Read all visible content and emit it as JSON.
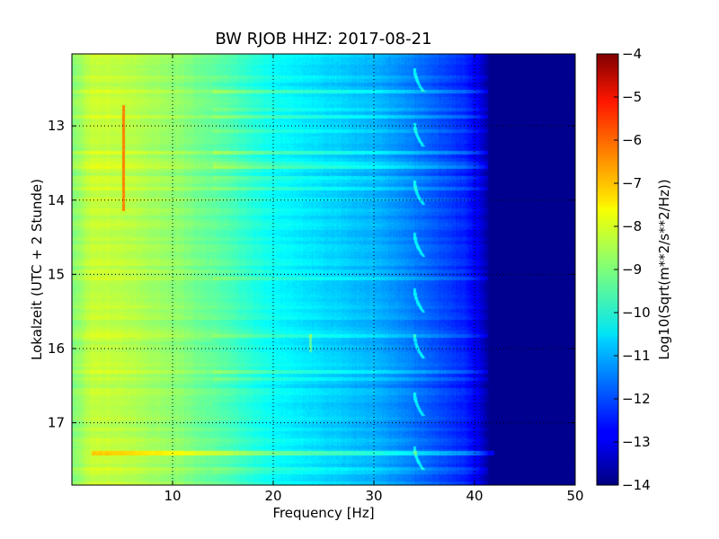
{
  "chart_data": {
    "type": "heatmap",
    "title": "BW RJOB HHZ: 2017-08-21",
    "xlabel": "Frequency [Hz]",
    "ylabel": "Lokalzeit (UTC + 2 Stunde)",
    "xlim": [
      0,
      50
    ],
    "ylim": [
      12.03,
      17.84
    ],
    "y_inverted": true,
    "x_ticks": [
      10,
      20,
      30,
      40,
      50
    ],
    "x_tick_labels": [
      "10",
      "20",
      "30",
      "40",
      "50"
    ],
    "y_ticks": [
      13,
      14,
      15,
      16,
      17
    ],
    "y_tick_labels": [
      "13",
      "14",
      "15",
      "16",
      "17"
    ],
    "grid": true,
    "colormap": "jet",
    "colorbar": {
      "label": "Log10(Sqrt(m**2/s**2/Hz))",
      "range": [
        -14,
        -4
      ],
      "ticks": [
        -4,
        -5,
        -6,
        -7,
        -8,
        -9,
        -10,
        -11,
        -12,
        -13,
        -14
      ],
      "tick_labels": [
        "−4",
        "−5",
        "−6",
        "−7",
        "−8",
        "−9",
        "−10",
        "−11",
        "−12",
        "−13",
        "−14"
      ]
    },
    "spectral_profile": {
      "frequency_hz": [
        0,
        2,
        5,
        10,
        15,
        20,
        25,
        30,
        33,
        36,
        39,
        40.5,
        41.5,
        50
      ],
      "log10_amplitude": [
        -9.0,
        -8.3,
        -8.4,
        -8.8,
        -9.4,
        -10.2,
        -10.6,
        -11.0,
        -11.4,
        -11.9,
        -12.4,
        -13.0,
        -13.85,
        -13.85
      ]
    },
    "features": [
      {
        "type": "narrowband_line",
        "frequency_hz": 5.1,
        "time_start": 12.72,
        "time_end": 14.15,
        "log10_amplitude": -6.5
      },
      {
        "type": "broadband_burst",
        "time": 17.41,
        "freq_start": 2,
        "freq_end": 42,
        "log10_amplitude_offset": 1.0
      },
      {
        "type": "recurring_chirp",
        "frequency_hz": 34.3,
        "times": [
          12.38,
          13.12,
          13.9,
          14.6,
          15.35,
          15.97,
          16.75,
          17.48
        ]
      },
      {
        "type": "short_chirp",
        "frequency_hz": 23.7,
        "time": 15.93
      }
    ]
  }
}
